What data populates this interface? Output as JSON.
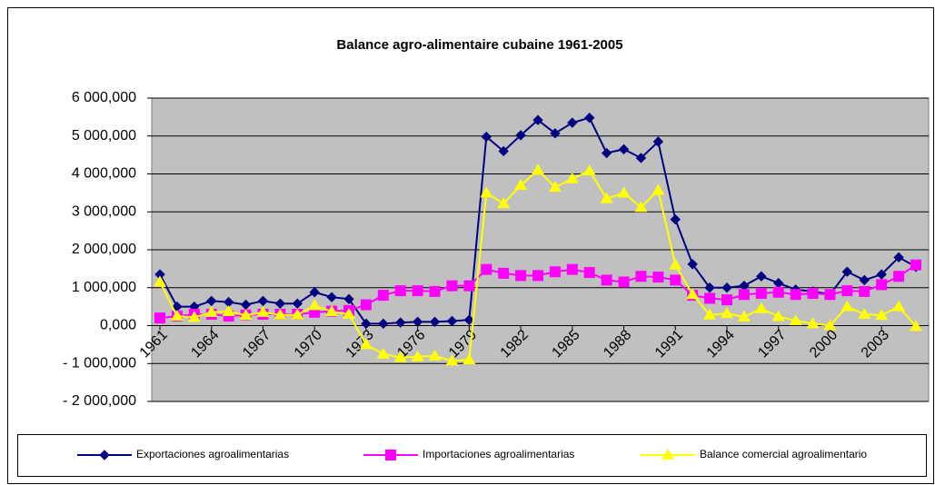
{
  "chart_data": {
    "type": "line",
    "title": "Balance agro-alimentaire cubaine 1961-2005",
    "categories": [
      "1961",
      null,
      null,
      "1964",
      null,
      null,
      "1967",
      null,
      null,
      "1970",
      null,
      null,
      "1973",
      null,
      null,
      "1976",
      null,
      null,
      "1979",
      null,
      null,
      "1982",
      null,
      null,
      "1985",
      null,
      null,
      "1988",
      null,
      null,
      "1991",
      null,
      null,
      "1994",
      null,
      null,
      "1997",
      null,
      null,
      "2000",
      null,
      null,
      "2003",
      null,
      null
    ],
    "series": [
      {
        "name": "Exportaciones agroalimentarias",
        "color": "#000080",
        "marker": "diamond",
        "values": [
          1350000,
          500000,
          500000,
          650000,
          620000,
          550000,
          650000,
          580000,
          580000,
          880000,
          750000,
          700000,
          50000,
          50000,
          80000,
          100000,
          100000,
          120000,
          150000,
          4980000,
          4600000,
          5020000,
          5420000,
          5070000,
          5350000,
          5480000,
          4550000,
          4650000,
          4420000,
          4850000,
          2800000,
          1620000,
          1000000,
          1000000,
          1050000,
          1300000,
          1120000,
          950000,
          900000,
          820000,
          1420000,
          1200000,
          1350000,
          1800000,
          1550000
        ]
      },
      {
        "name": "Importaciones agroalimentarias",
        "color": "#ff00ff",
        "marker": "square",
        "values": [
          200000,
          250000,
          300000,
          300000,
          250000,
          280000,
          300000,
          300000,
          300000,
          350000,
          380000,
          400000,
          550000,
          800000,
          920000,
          920000,
          900000,
          1050000,
          1050000,
          1480000,
          1380000,
          1320000,
          1320000,
          1420000,
          1480000,
          1400000,
          1200000,
          1150000,
          1300000,
          1280000,
          1200000,
          800000,
          720000,
          680000,
          820000,
          850000,
          880000,
          820000,
          850000,
          820000,
          920000,
          900000,
          1080000,
          1300000,
          1600000
        ]
      },
      {
        "name": "Balance comercial agroalimentario",
        "color": "#ffff00",
        "marker": "triangle",
        "values": [
          1150000,
          250000,
          220000,
          350000,
          370000,
          270000,
          350000,
          280000,
          280000,
          530000,
          370000,
          300000,
          -500000,
          -750000,
          -840000,
          -820000,
          -800000,
          -930000,
          -900000,
          3500000,
          3220000,
          3700000,
          4100000,
          3650000,
          3870000,
          4080000,
          3350000,
          3500000,
          3120000,
          3570000,
          1600000,
          820000,
          280000,
          320000,
          230000,
          450000,
          240000,
          130000,
          50000,
          0,
          500000,
          300000,
          270000,
          500000,
          -20000
        ]
      }
    ],
    "ylim": [
      -2000000,
      6000000
    ],
    "yticks": [
      {
        "value": -2000000,
        "label": "- 2 000,000"
      },
      {
        "value": -1000000,
        "label": "- 1 000,000"
      },
      {
        "value": 0,
        "label": "0,000"
      },
      {
        "value": 1000000,
        "label": "1 000,000"
      },
      {
        "value": 2000000,
        "label": "2 000,000"
      },
      {
        "value": 3000000,
        "label": "3 000,000"
      },
      {
        "value": 4000000,
        "label": "4 000,000"
      },
      {
        "value": 5000000,
        "label": "5 000,000"
      },
      {
        "value": 6000000,
        "label": "6 000,000"
      }
    ],
    "grid": true,
    "legend": "bottom",
    "plot_background": "#c0c0c0"
  }
}
